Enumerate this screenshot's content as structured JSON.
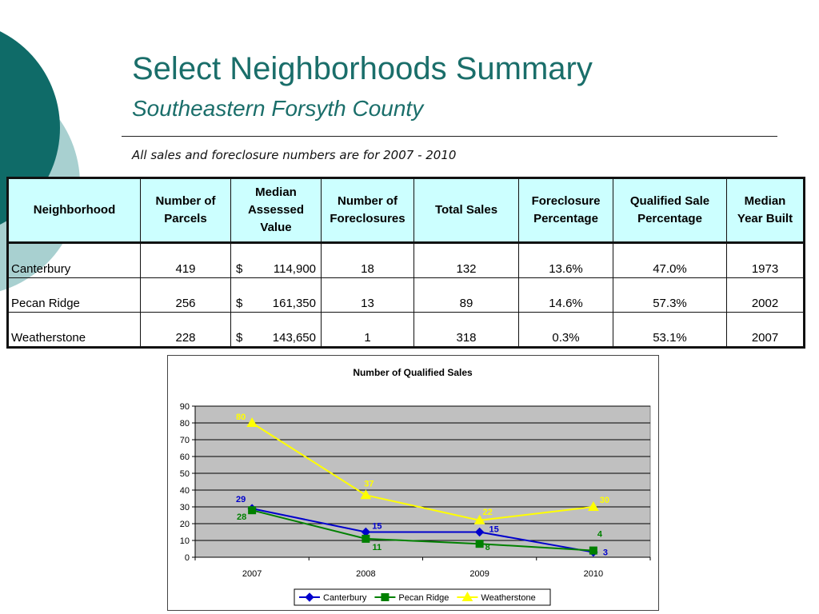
{
  "slide": {
    "title": "Select Neighborhoods Summary",
    "subtitle": "Southeastern Forsyth County",
    "note": "All sales and foreclosure numbers are for 2007 - 2010"
  },
  "colors": {
    "title": "#1a6e6a",
    "header_fill": "#ccffff",
    "plot_area": "#c0c0c0",
    "canterbury": "#0000cc",
    "pecan_ridge": "#008000",
    "weatherstone": "#ffff00"
  },
  "table": {
    "headers": [
      "Neighborhood",
      "Number of Parcels",
      "Median Assessed Value",
      "Number of Foreclosures",
      "Total Sales",
      "Foreclosure Percentage",
      "Qualified Sale Percentage",
      "Median Year Built"
    ],
    "rows": [
      {
        "neighborhood": "Canterbury",
        "parcels": "419",
        "currency": "$",
        "value": "114,900",
        "foreclosures": "18",
        "sales": "132",
        "foreclosure_pct": "13.6%",
        "qualified_pct": "47.0%",
        "year": "1973"
      },
      {
        "neighborhood": "Pecan Ridge",
        "parcels": "256",
        "currency": "$",
        "value": "161,350",
        "foreclosures": "13",
        "sales": "89",
        "foreclosure_pct": "14.6%",
        "qualified_pct": "57.3%",
        "year": "2002"
      },
      {
        "neighborhood": "Weatherstone",
        "parcels": "228",
        "currency": "$",
        "value": "143,650",
        "foreclosures": "1",
        "sales": "318",
        "foreclosure_pct": "0.3%",
        "qualified_pct": "53.1%",
        "year": "2007"
      }
    ]
  },
  "chart_data": {
    "type": "line",
    "title": "Number of Qualified Sales",
    "xlabel": "",
    "ylabel": "",
    "categories": [
      "2007",
      "2008",
      "2009",
      "2010"
    ],
    "ylim": [
      0,
      90
    ],
    "yticks": [
      "0",
      "10",
      "20",
      "30",
      "40",
      "50",
      "60",
      "70",
      "80",
      "90"
    ],
    "grid": true,
    "legend": "bottom",
    "series": [
      {
        "name": "Canterbury",
        "values": [
          29,
          15,
          15,
          3
        ],
        "labels": [
          "29",
          "15",
          "15",
          "3"
        ],
        "color": "#0000cc",
        "marker": "diamond"
      },
      {
        "name": "Pecan Ridge",
        "values": [
          28,
          11,
          8,
          4
        ],
        "labels": [
          "28",
          "11",
          "8",
          "4"
        ],
        "color": "#008000",
        "marker": "square"
      },
      {
        "name": "Weatherstone",
        "values": [
          80,
          37,
          22,
          30
        ],
        "labels": [
          "80",
          "37",
          "22",
          "30"
        ],
        "color": "#ffff00",
        "marker": "triangle"
      }
    ]
  }
}
